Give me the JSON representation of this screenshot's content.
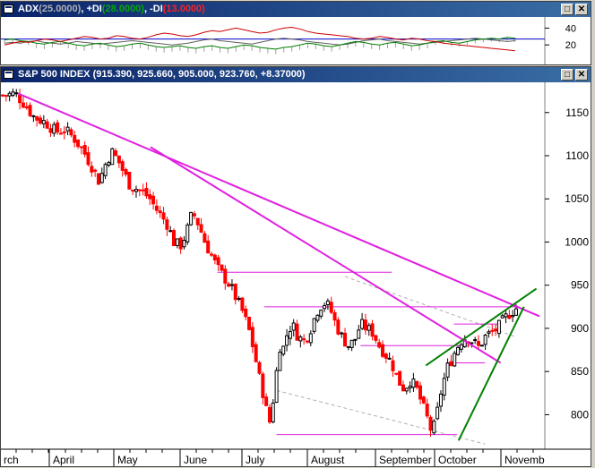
{
  "adx_panel": {
    "title_parts": [
      {
        "text": "ADX",
        "color": "#ffffff"
      },
      {
        "text": "(25.0000)",
        "color": "#b0b0b0"
      },
      {
        "text": ", +DI",
        "color": "#ffffff"
      },
      {
        "text": "(28.0000)",
        "color": "#00aa00"
      },
      {
        "text": ", -DI",
        "color": "#ffffff"
      },
      {
        "text": "(13.0000)",
        "color": "#ff2020"
      }
    ],
    "window_buttons": {
      "restore": "□",
      "close": "✕"
    }
  },
  "price_panel": {
    "title": "S&P 500 INDEX",
    "title_values": "(915.390, 925.660, 905.000, 923.760, +8.37000)",
    "window_buttons": {
      "restore": "□",
      "close": "✕"
    }
  },
  "colors": {
    "up_candle": "#000000",
    "down_candle": "#ff0000",
    "trendline": "#e020e0",
    "channel": "#008000",
    "adx": "#606060",
    "plus_di": "#008000",
    "minus_di": "#cc0000",
    "ref_line": "#0000cc"
  },
  "chart_data": [
    {
      "type": "line",
      "title": "ADX (25.0000), +DI (28.0000), -DI (13.0000)",
      "ylim": [
        0,
        50
      ],
      "yticks": [
        20,
        40
      ],
      "reference_line": 27,
      "series": [
        {
          "name": "ADX",
          "values": [
            22,
            23,
            22,
            24,
            25,
            23,
            22,
            21,
            22,
            24,
            23,
            22,
            21,
            22,
            23,
            24,
            25,
            24,
            23,
            22,
            21,
            20,
            21,
            22,
            24,
            26,
            27,
            25,
            24,
            23,
            22,
            21,
            23,
            25,
            27,
            28,
            27,
            26,
            24,
            23,
            22,
            21,
            20,
            21,
            23,
            25,
            26,
            27,
            25,
            24,
            23,
            22,
            21,
            22,
            23,
            24,
            25,
            26,
            27,
            28,
            27,
            26,
            25,
            24,
            25
          ]
        },
        {
          "name": "+DI",
          "values": [
            26,
            27,
            25,
            24,
            22,
            21,
            23,
            24,
            22,
            20,
            19,
            21,
            22,
            20,
            18,
            19,
            21,
            22,
            20,
            18,
            17,
            18,
            19,
            17,
            16,
            18,
            19,
            17,
            16,
            18,
            20,
            19,
            17,
            16,
            15,
            17,
            18,
            20,
            22,
            21,
            19,
            18,
            20,
            22,
            24,
            23,
            21,
            20,
            22,
            23,
            21,
            19,
            20,
            22,
            24,
            25,
            23,
            22,
            24,
            26,
            27,
            28,
            27,
            29,
            28
          ]
        },
        {
          "name": "-DI",
          "values": [
            20,
            22,
            24,
            23,
            25,
            27,
            26,
            24,
            26,
            28,
            30,
            29,
            27,
            28,
            31,
            30,
            28,
            27,
            29,
            32,
            34,
            33,
            31,
            30,
            32,
            35,
            37,
            36,
            38,
            40,
            38,
            36,
            34,
            35,
            38,
            40,
            41,
            39,
            36,
            34,
            33,
            32,
            31,
            30,
            28,
            27,
            28,
            30,
            29,
            27,
            26,
            28,
            27,
            25,
            24,
            22,
            21,
            20,
            19,
            18,
            17,
            16,
            15,
            14,
            13
          ]
        }
      ]
    },
    {
      "type": "candlestick",
      "title": "S&P 500 INDEX",
      "x_labels": [
        "rch",
        "April",
        "May",
        "June",
        "July",
        "August",
        "September",
        "October",
        "Novemb"
      ],
      "ylim": [
        760,
        1185
      ],
      "yticks": [
        800,
        850,
        900,
        950,
        1000,
        1050,
        1100,
        1150
      ],
      "last_bar": {
        "open": 915.39,
        "high": 925.66,
        "low": 905.0,
        "close": 923.76,
        "change": 8.37
      },
      "path": [
        [
          0,
          1170
        ],
        [
          8,
          1172
        ],
        [
          14,
          1160
        ],
        [
          20,
          1145
        ],
        [
          28,
          1138
        ],
        [
          34,
          1128
        ],
        [
          40,
          1130
        ],
        [
          46,
          1120
        ],
        [
          52,
          1105
        ],
        [
          58,
          1085
        ],
        [
          62,
          1070
        ],
        [
          66,
          1090
        ],
        [
          70,
          1105
        ],
        [
          74,
          1095
        ],
        [
          78,
          1080
        ],
        [
          82,
          1065
        ],
        [
          88,
          1060
        ],
        [
          94,
          1052
        ],
        [
          98,
          1040
        ],
        [
          102,
          1030
        ],
        [
          106,
          1020
        ],
        [
          110,
          1000
        ],
        [
          114,
          995
        ],
        [
          118,
          1010
        ],
        [
          122,
          1035
        ],
        [
          126,
          1020
        ],
        [
          130,
          1000
        ],
        [
          134,
          985
        ],
        [
          138,
          970
        ],
        [
          142,
          960
        ],
        [
          146,
          950
        ],
        [
          150,
          935
        ],
        [
          154,
          920
        ],
        [
          158,
          900
        ],
        [
          160,
          885
        ],
        [
          162,
          870
        ],
        [
          164,
          850
        ],
        [
          166,
          835
        ],
        [
          168,
          820
        ],
        [
          170,
          800
        ],
        [
          172,
          790
        ],
        [
          174,
          820
        ],
        [
          176,
          850
        ],
        [
          178,
          880
        ],
        [
          180,
          875
        ],
        [
          183,
          895
        ],
        [
          186,
          905
        ],
        [
          190,
          890
        ],
        [
          194,
          885
        ],
        [
          198,
          900
        ],
        [
          202,
          920
        ],
        [
          206,
          930
        ],
        [
          210,
          925
        ],
        [
          214,
          905
        ],
        [
          218,
          890
        ],
        [
          222,
          880
        ],
        [
          226,
          885
        ],
        [
          230,
          905
        ],
        [
          234,
          900
        ],
        [
          238,
          895
        ],
        [
          242,
          880
        ],
        [
          246,
          870
        ],
        [
          250,
          860
        ],
        [
          254,
          840
        ],
        [
          258,
          830
        ],
        [
          262,
          840
        ],
        [
          266,
          830
        ],
        [
          270,
          810
        ],
        [
          274,
          790
        ],
        [
          276,
          777
        ],
        [
          279,
          800
        ],
        [
          282,
          830
        ],
        [
          286,
          855
        ],
        [
          290,
          870
        ],
        [
          294,
          885
        ],
        [
          298,
          890
        ],
        [
          302,
          885
        ],
        [
          306,
          878
        ],
        [
          310,
          890
        ],
        [
          314,
          895
        ],
        [
          318,
          900
        ],
        [
          322,
          910
        ],
        [
          326,
          918
        ],
        [
          330,
          923
        ]
      ],
      "horizontal_levels": [
        965,
        925,
        880,
        777
      ]
    }
  ]
}
